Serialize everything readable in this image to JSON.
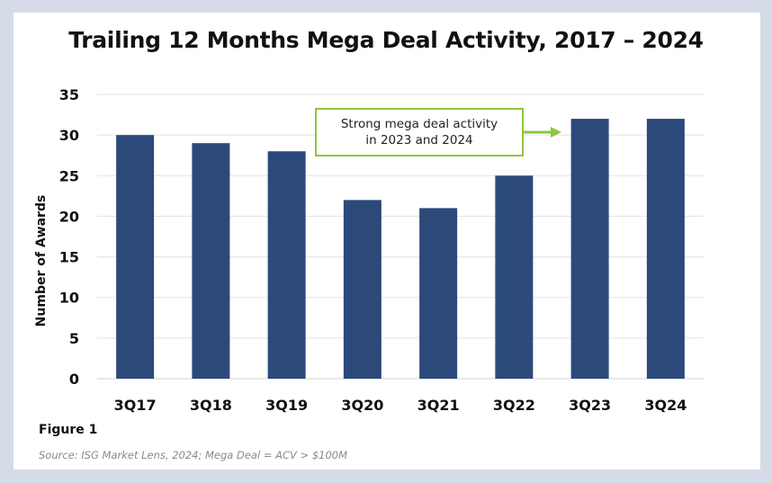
{
  "chart_data": {
    "type": "bar",
    "title": "Trailing 12 Months Mega Deal Activity, 2017 – 2024",
    "ylabel": "Number of Awards",
    "xlabel": "",
    "categories": [
      "3Q17",
      "3Q18",
      "3Q19",
      "3Q20",
      "3Q21",
      "3Q22",
      "3Q23",
      "3Q24"
    ],
    "values": [
      30,
      29,
      28,
      22,
      21,
      25,
      32,
      32
    ],
    "ylim": [
      0,
      35
    ],
    "yticks": [
      0,
      5,
      10,
      15,
      20,
      25,
      30,
      35
    ],
    "grid": true,
    "bar_color": "#2b4a7a",
    "annotation": {
      "lines": [
        "Strong mega deal activity",
        "in 2023 and 2024"
      ],
      "border_color": "#8dc63f",
      "points_to": "3Q23"
    }
  },
  "figure_label": "Figure 1",
  "source": "Source: ISG Market Lens, 2024; Mega Deal = ACV > $100M"
}
